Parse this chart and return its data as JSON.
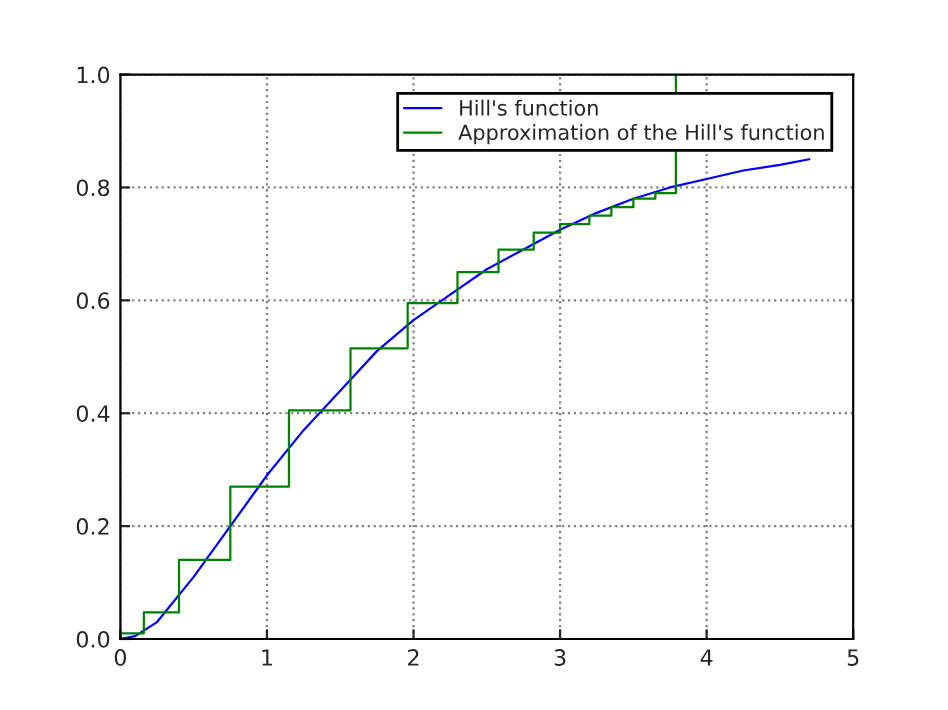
{
  "chart_data": {
    "type": "line",
    "series": [
      {
        "name": "Hill's function",
        "color": "#0000ff",
        "x": [
          0,
          0.1,
          0.25,
          0.5,
          0.75,
          1.0,
          1.25,
          1.5,
          1.75,
          2.0,
          2.25,
          2.5,
          2.75,
          3.0,
          3.25,
          3.5,
          3.75,
          4.0,
          4.25,
          4.5,
          4.7
        ],
        "values": [
          0,
          0.005,
          0.03,
          0.11,
          0.2,
          0.29,
          0.37,
          0.44,
          0.51,
          0.565,
          0.61,
          0.655,
          0.69,
          0.725,
          0.755,
          0.78,
          0.8,
          0.815,
          0.83,
          0.84,
          0.85
        ]
      },
      {
        "name": "Approximation of the Hill's function",
        "color": "#008000",
        "type": "step",
        "x": [
          0,
          0.16,
          0.4,
          0.75,
          1.15,
          1.57,
          1.96,
          2.3,
          2.58,
          2.82,
          3.0,
          3.2,
          3.35,
          3.5,
          3.65,
          3.79
        ],
        "values": [
          0.01,
          0.047,
          0.14,
          0.27,
          0.405,
          0.515,
          0.595,
          0.65,
          0.69,
          0.72,
          0.735,
          0.75,
          0.765,
          0.78,
          0.79,
          1.0
        ]
      }
    ],
    "xlim": [
      0,
      5
    ],
    "ylim": [
      0,
      1.0
    ],
    "xticks": [
      0,
      1,
      2,
      3,
      4,
      5
    ],
    "yticks": [
      {
        "value": 0,
        "label": "0.0"
      },
      {
        "value": 0.2,
        "label": "0.2"
      },
      {
        "value": 0.4,
        "label": "0.4"
      },
      {
        "value": 0.6,
        "label": "0.6"
      },
      {
        "value": 0.8,
        "label": "0.8"
      },
      {
        "value": 1.0,
        "label": "1.0"
      }
    ],
    "grid": true,
    "legend": "top right"
  }
}
